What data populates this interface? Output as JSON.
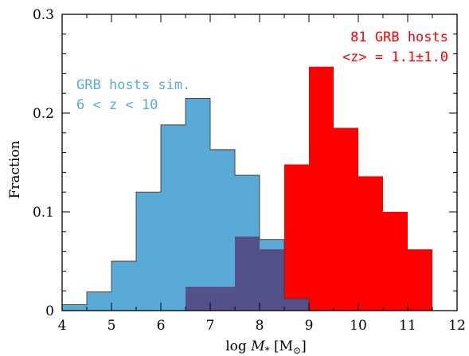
{
  "chart_data": {
    "type": "histogram",
    "xlabel": "log M_* [M_⊙]",
    "xlabel_parts": {
      "prefix": "log ",
      "var": "M",
      "sub": "*",
      "unit_open": " [M",
      "unit_sub": "⊙",
      "unit_close": "]"
    },
    "ylabel": "Fraction",
    "xlim": [
      4,
      12
    ],
    "ylim": [
      0,
      0.3
    ],
    "xticks": [
      4,
      5,
      6,
      7,
      8,
      9,
      10,
      11,
      12
    ],
    "yticks": [
      0,
      0.1,
      0.2,
      0.3
    ],
    "ytick_labels": [
      "0",
      "0.1",
      "0.2",
      "0.3"
    ],
    "bin_edges": [
      4.0,
      4.5,
      5.0,
      5.5,
      6.0,
      6.5,
      7.0,
      7.5,
      8.0,
      8.5,
      9.0,
      9.5,
      10.0,
      10.5,
      11.0,
      11.5
    ],
    "series": [
      {
        "name": "GRB hosts sim. 6 < z < 10",
        "color": "#5aaad8",
        "values": [
          0.006,
          0.019,
          0.05,
          0.12,
          0.188,
          0.215,
          0.163,
          0.137,
          0.072,
          0.012,
          0.0,
          0.0,
          0.0,
          0.0,
          0.0
        ]
      },
      {
        "name": "81 GRB hosts <z> = 1.1±1.0",
        "color": "#ff0000",
        "values": [
          0.0,
          0.0,
          0.0,
          0.0,
          0.0,
          0.024,
          0.024,
          0.075,
          0.062,
          0.148,
          0.247,
          0.185,
          0.136,
          0.1,
          0.062
        ]
      }
    ],
    "overlap_color": "#54508a",
    "annotations": [
      {
        "lines": [
          "81 GRB hosts",
          "<z> = 1.1±1.0"
        ],
        "color": "#ff0000",
        "align": "right"
      },
      {
        "lines": [
          "GRB hosts sim.",
          "6 < z < 10"
        ],
        "color": "#5aaad8",
        "align": "left"
      }
    ],
    "grid": false,
    "legend": "none"
  }
}
